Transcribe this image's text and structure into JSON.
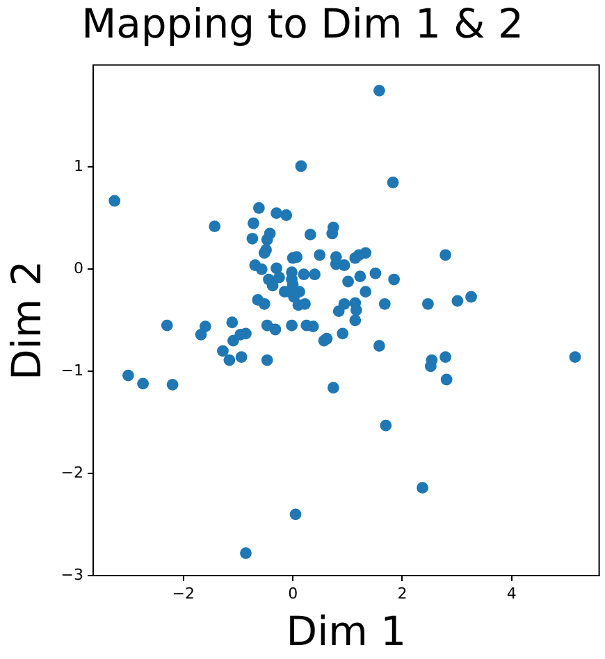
{
  "chart_data": {
    "type": "scatter",
    "title": "Mapping to Dim 1 & 2",
    "xlabel": "Dim 1",
    "ylabel": "Dim 2",
    "marker": "circle",
    "grid": false,
    "legend": false,
    "xlim": [
      -3.65,
      5.6
    ],
    "ylim": [
      -3,
      2
    ],
    "xticks": [
      {
        "value": -2,
        "label": "−2"
      },
      0,
      2,
      4
    ],
    "yticks": [
      {
        "value": -3,
        "label": "−3"
      },
      {
        "value": -2,
        "label": "−2"
      },
      {
        "value": -1,
        "label": "−1"
      },
      0,
      1
    ],
    "series": [
      {
        "color": "#1f77b4",
        "x": [
          1.58,
          -3.26,
          0.15,
          1.83,
          -1.43,
          -3.01,
          -2.74,
          -2.2,
          -2.3,
          2.37,
          0.05,
          -0.86,
          1.7,
          5.16,
          0.62,
          0.91,
          1.14,
          1.58,
          0.74,
          2.54,
          2.52,
          2.79,
          2.81,
          0.74,
          0.72,
          2.79,
          0.79,
          0.79,
          0.94,
          1.14,
          1.21,
          1.33,
          1.01,
          1.23,
          1.51,
          1.85,
          1.33,
          0.84,
          0.94,
          1.14,
          1.16,
          1.68,
          2.47,
          3.01,
          3.26,
          -0.62,
          -0.3,
          -0.12,
          -0.72,
          -0.42,
          -0.47,
          -0.74,
          0.32,
          -0.52,
          -0.49,
          0,
          0.07,
          0.49,
          -0.69,
          -0.57,
          -0.3,
          -0.02,
          0.2,
          0.4,
          -0.25,
          -0.44,
          -0.37,
          -0.02,
          0,
          -0.15,
          -0.07,
          0.12,
          0.02,
          -0.64,
          -0.52,
          0.1,
          0.22,
          -1.6,
          -1.68,
          -1.11,
          -0.47,
          -0.32,
          -0.02,
          0.25,
          0.37,
          0.57,
          -0.96,
          -0.86,
          -1.09,
          -1.28,
          -1.16,
          -0.94,
          -0.47
        ],
        "values": [
          1.75,
          0.67,
          1.01,
          0.85,
          0.42,
          -1.04,
          -1.12,
          -1.13,
          -0.55,
          -2.14,
          -2.4,
          -2.78,
          -1.53,
          -0.86,
          -0.68,
          -0.63,
          -0.5,
          -0.75,
          -1.16,
          -0.89,
          -0.95,
          -0.86,
          -1.08,
          0.41,
          0.35,
          0.14,
          0.12,
          0.05,
          0.04,
          0.11,
          0.14,
          0.16,
          -0.12,
          -0.07,
          -0.04,
          -0.1,
          -0.22,
          -0.41,
          -0.34,
          -0.33,
          -0.4,
          -0.34,
          -0.34,
          -0.31,
          -0.27,
          0.6,
          0.55,
          0.53,
          0.45,
          0.35,
          0.29,
          0.3,
          0.34,
          0.16,
          0.19,
          0.11,
          0.12,
          0.14,
          0.04,
          0,
          0.01,
          -0.03,
          -0.05,
          -0.05,
          -0.08,
          -0.1,
          -0.16,
          -0.1,
          -0.15,
          -0.22,
          -0.22,
          -0.22,
          -0.27,
          -0.3,
          -0.34,
          -0.35,
          -0.34,
          -0.56,
          -0.64,
          -0.52,
          -0.55,
          -0.59,
          -0.55,
          -0.55,
          -0.56,
          -0.7,
          -0.64,
          -0.63,
          -0.7,
          -0.8,
          -0.89,
          -0.86,
          -0.89
        ]
      }
    ]
  }
}
